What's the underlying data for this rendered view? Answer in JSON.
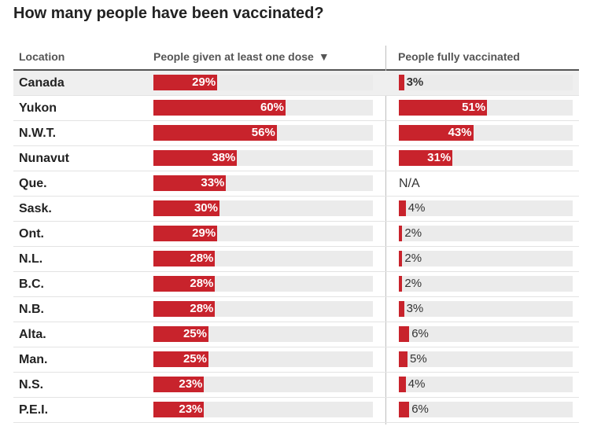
{
  "title": "How many people have been vaccinated?",
  "columns": {
    "location": "Location",
    "one_dose": "People given at least one dose",
    "fully": "People fully vaccinated",
    "sort_icon": "sort-descending-icon"
  },
  "colors": {
    "bar": "#c8232c",
    "track": "#ebebeb",
    "highlight_row": "#efefef"
  },
  "chart_data": {
    "type": "bar",
    "categories": [
      "Canada",
      "Yukon",
      "N.W.T.",
      "Nunavut",
      "Que.",
      "Sask.",
      "Ont.",
      "N.L.",
      "B.C.",
      "N.B.",
      "Alta.",
      "Man.",
      "N.S.",
      "P.E.I."
    ],
    "ylim": [
      0,
      100
    ],
    "series": [
      {
        "name": "People given at least one dose",
        "values": [
          29,
          60,
          56,
          38,
          33,
          30,
          29,
          28,
          28,
          28,
          25,
          25,
          23,
          23
        ]
      },
      {
        "name": "People fully vaccinated",
        "values": [
          3,
          51,
          43,
          31,
          null,
          4,
          2,
          2,
          2,
          3,
          6,
          5,
          4,
          6
        ]
      }
    ]
  },
  "rows": [
    {
      "location": "Canada",
      "one_dose": "29%",
      "fully": "3%"
    },
    {
      "location": "Yukon",
      "one_dose": "60%",
      "fully": "51%"
    },
    {
      "location": "N.W.T.",
      "one_dose": "56%",
      "fully": "43%"
    },
    {
      "location": "Nunavut",
      "one_dose": "38%",
      "fully": "31%"
    },
    {
      "location": "Que.",
      "one_dose": "33%",
      "fully": "N/A"
    },
    {
      "location": "Sask.",
      "one_dose": "30%",
      "fully": "4%"
    },
    {
      "location": "Ont.",
      "one_dose": "29%",
      "fully": "2%"
    },
    {
      "location": "N.L.",
      "one_dose": "28%",
      "fully": "2%"
    },
    {
      "location": "B.C.",
      "one_dose": "28%",
      "fully": "2%"
    },
    {
      "location": "N.B.",
      "one_dose": "28%",
      "fully": "3%"
    },
    {
      "location": "Alta.",
      "one_dose": "25%",
      "fully": "6%"
    },
    {
      "location": "Man.",
      "one_dose": "25%",
      "fully": "5%"
    },
    {
      "location": "N.S.",
      "one_dose": "23%",
      "fully": "4%"
    },
    {
      "location": "P.E.I.",
      "one_dose": "23%",
      "fully": "6%"
    }
  ]
}
